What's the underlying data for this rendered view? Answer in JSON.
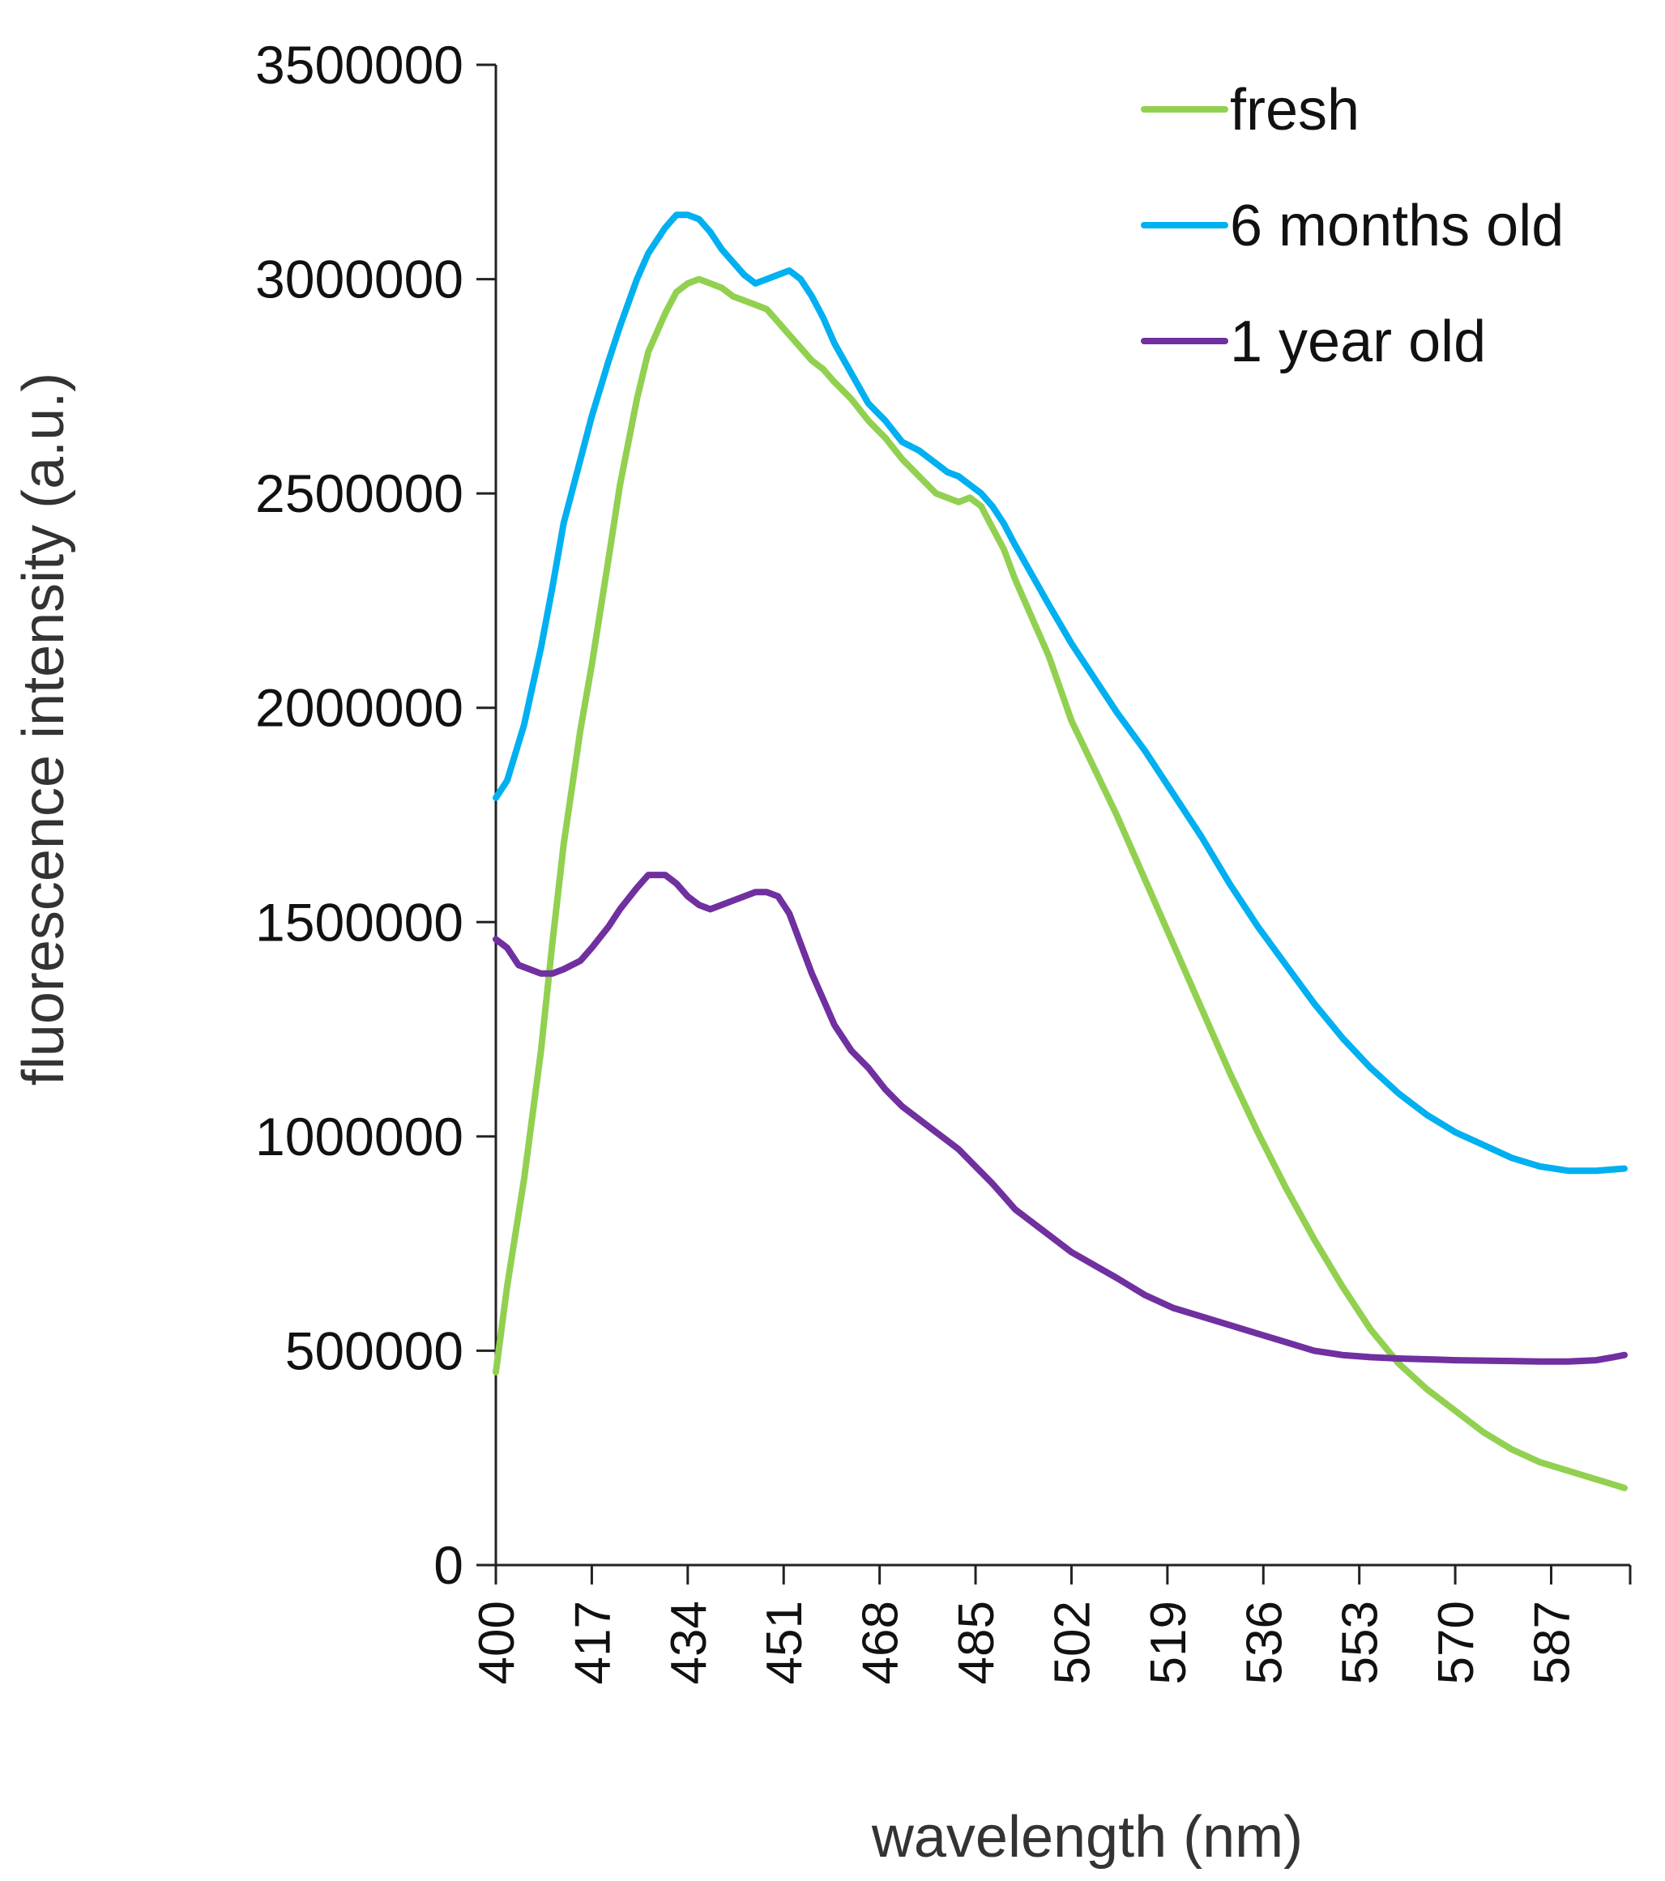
{
  "chart_data": {
    "type": "line",
    "title": "",
    "xlabel": "wavelength (nm)",
    "ylabel": "fluorescence intensity (a.u.)",
    "xlim": [
      400,
      601
    ],
    "ylim": [
      0,
      3500000
    ],
    "grid": false,
    "legend_position": "top-right",
    "x_ticks": [
      "400",
      "417",
      "434",
      "451",
      "468",
      "485",
      "502",
      "519",
      "536",
      "553",
      "570",
      "587"
    ],
    "y_ticks": [
      "0",
      "500000",
      "1000000",
      "1500000",
      "2000000",
      "2500000",
      "3000000",
      "3500000"
    ],
    "series": [
      {
        "name": "fresh",
        "color": "#92d050",
        "x": [
          400,
          402,
          405,
          408,
          410,
          412,
          415,
          417,
          420,
          422,
          425,
          427,
          430,
          432,
          434,
          436,
          438,
          440,
          442,
          444,
          446,
          448,
          450,
          452,
          454,
          456,
          458,
          460,
          463,
          466,
          469,
          472,
          475,
          478,
          480,
          482,
          484,
          486,
          488,
          490,
          492,
          495,
          498,
          502,
          506,
          510,
          515,
          520,
          525,
          530,
          535,
          540,
          545,
          550,
          555,
          560,
          565,
          570,
          575,
          580,
          585,
          590,
          595,
          600
        ],
        "y": [
          450000,
          650000,
          900000,
          1200000,
          1450000,
          1680000,
          1950000,
          2100000,
          2350000,
          2520000,
          2720000,
          2830000,
          2920000,
          2970000,
          2990000,
          3000000,
          2990000,
          2980000,
          2960000,
          2950000,
          2940000,
          2930000,
          2900000,
          2870000,
          2840000,
          2810000,
          2790000,
          2760000,
          2720000,
          2670000,
          2630000,
          2580000,
          2540000,
          2500000,
          2490000,
          2480000,
          2490000,
          2470000,
          2420000,
          2370000,
          2300000,
          2210000,
          2120000,
          1970000,
          1860000,
          1750000,
          1600000,
          1450000,
          1300000,
          1150000,
          1010000,
          880000,
          760000,
          650000,
          550000,
          470000,
          410000,
          360000,
          310000,
          270000,
          240000,
          220000,
          200000,
          180000
        ]
      },
      {
        "name": "6 months old",
        "color": "#00b0f0",
        "x": [
          400,
          402,
          405,
          408,
          410,
          412,
          415,
          417,
          420,
          422,
          425,
          427,
          430,
          432,
          434,
          436,
          438,
          440,
          442,
          444,
          446,
          448,
          450,
          452,
          454,
          456,
          458,
          460,
          463,
          466,
          469,
          472,
          475,
          478,
          480,
          482,
          484,
          486,
          488,
          490,
          492,
          495,
          498,
          502,
          506,
          510,
          515,
          520,
          525,
          530,
          535,
          540,
          545,
          550,
          555,
          560,
          565,
          570,
          575,
          580,
          585,
          590,
          595,
          600
        ],
        "y": [
          1790000,
          1830000,
          1960000,
          2140000,
          2280000,
          2430000,
          2580000,
          2680000,
          2810000,
          2890000,
          3000000,
          3060000,
          3120000,
          3150000,
          3150000,
          3140000,
          3110000,
          3070000,
          3040000,
          3010000,
          2990000,
          3000000,
          3010000,
          3020000,
          3000000,
          2960000,
          2910000,
          2850000,
          2780000,
          2710000,
          2670000,
          2620000,
          2600000,
          2570000,
          2550000,
          2540000,
          2520000,
          2500000,
          2470000,
          2430000,
          2380000,
          2310000,
          2240000,
          2150000,
          2070000,
          1990000,
          1900000,
          1800000,
          1700000,
          1590000,
          1490000,
          1400000,
          1310000,
          1230000,
          1160000,
          1100000,
          1050000,
          1010000,
          980000,
          950000,
          930000,
          920000,
          920000,
          925000
        ]
      },
      {
        "name": "1 year old",
        "color": "#7030a0",
        "x": [
          400,
          402,
          404,
          406,
          408,
          410,
          412,
          415,
          417,
          420,
          422,
          425,
          427,
          430,
          432,
          434,
          436,
          438,
          440,
          442,
          444,
          446,
          448,
          450,
          452,
          454,
          456,
          458,
          460,
          463,
          466,
          469,
          472,
          475,
          478,
          480,
          482,
          485,
          488,
          490,
          492,
          495,
          498,
          502,
          506,
          510,
          515,
          520,
          525,
          530,
          535,
          540,
          545,
          550,
          555,
          560,
          565,
          570,
          575,
          580,
          585,
          590,
          595,
          598,
          600
        ],
        "y": [
          1460000,
          1440000,
          1400000,
          1390000,
          1380000,
          1380000,
          1390000,
          1410000,
          1440000,
          1490000,
          1530000,
          1580000,
          1610000,
          1610000,
          1590000,
          1560000,
          1540000,
          1530000,
          1540000,
          1550000,
          1560000,
          1570000,
          1570000,
          1560000,
          1520000,
          1450000,
          1380000,
          1320000,
          1260000,
          1200000,
          1160000,
          1110000,
          1070000,
          1040000,
          1010000,
          990000,
          970000,
          930000,
          890000,
          860000,
          830000,
          800000,
          770000,
          730000,
          700000,
          670000,
          630000,
          600000,
          580000,
          560000,
          540000,
          520000,
          500000,
          490000,
          485000,
          482000,
          480000,
          478000,
          477000,
          476000,
          475000,
          475000,
          478000,
          485000,
          490000
        ]
      }
    ]
  }
}
